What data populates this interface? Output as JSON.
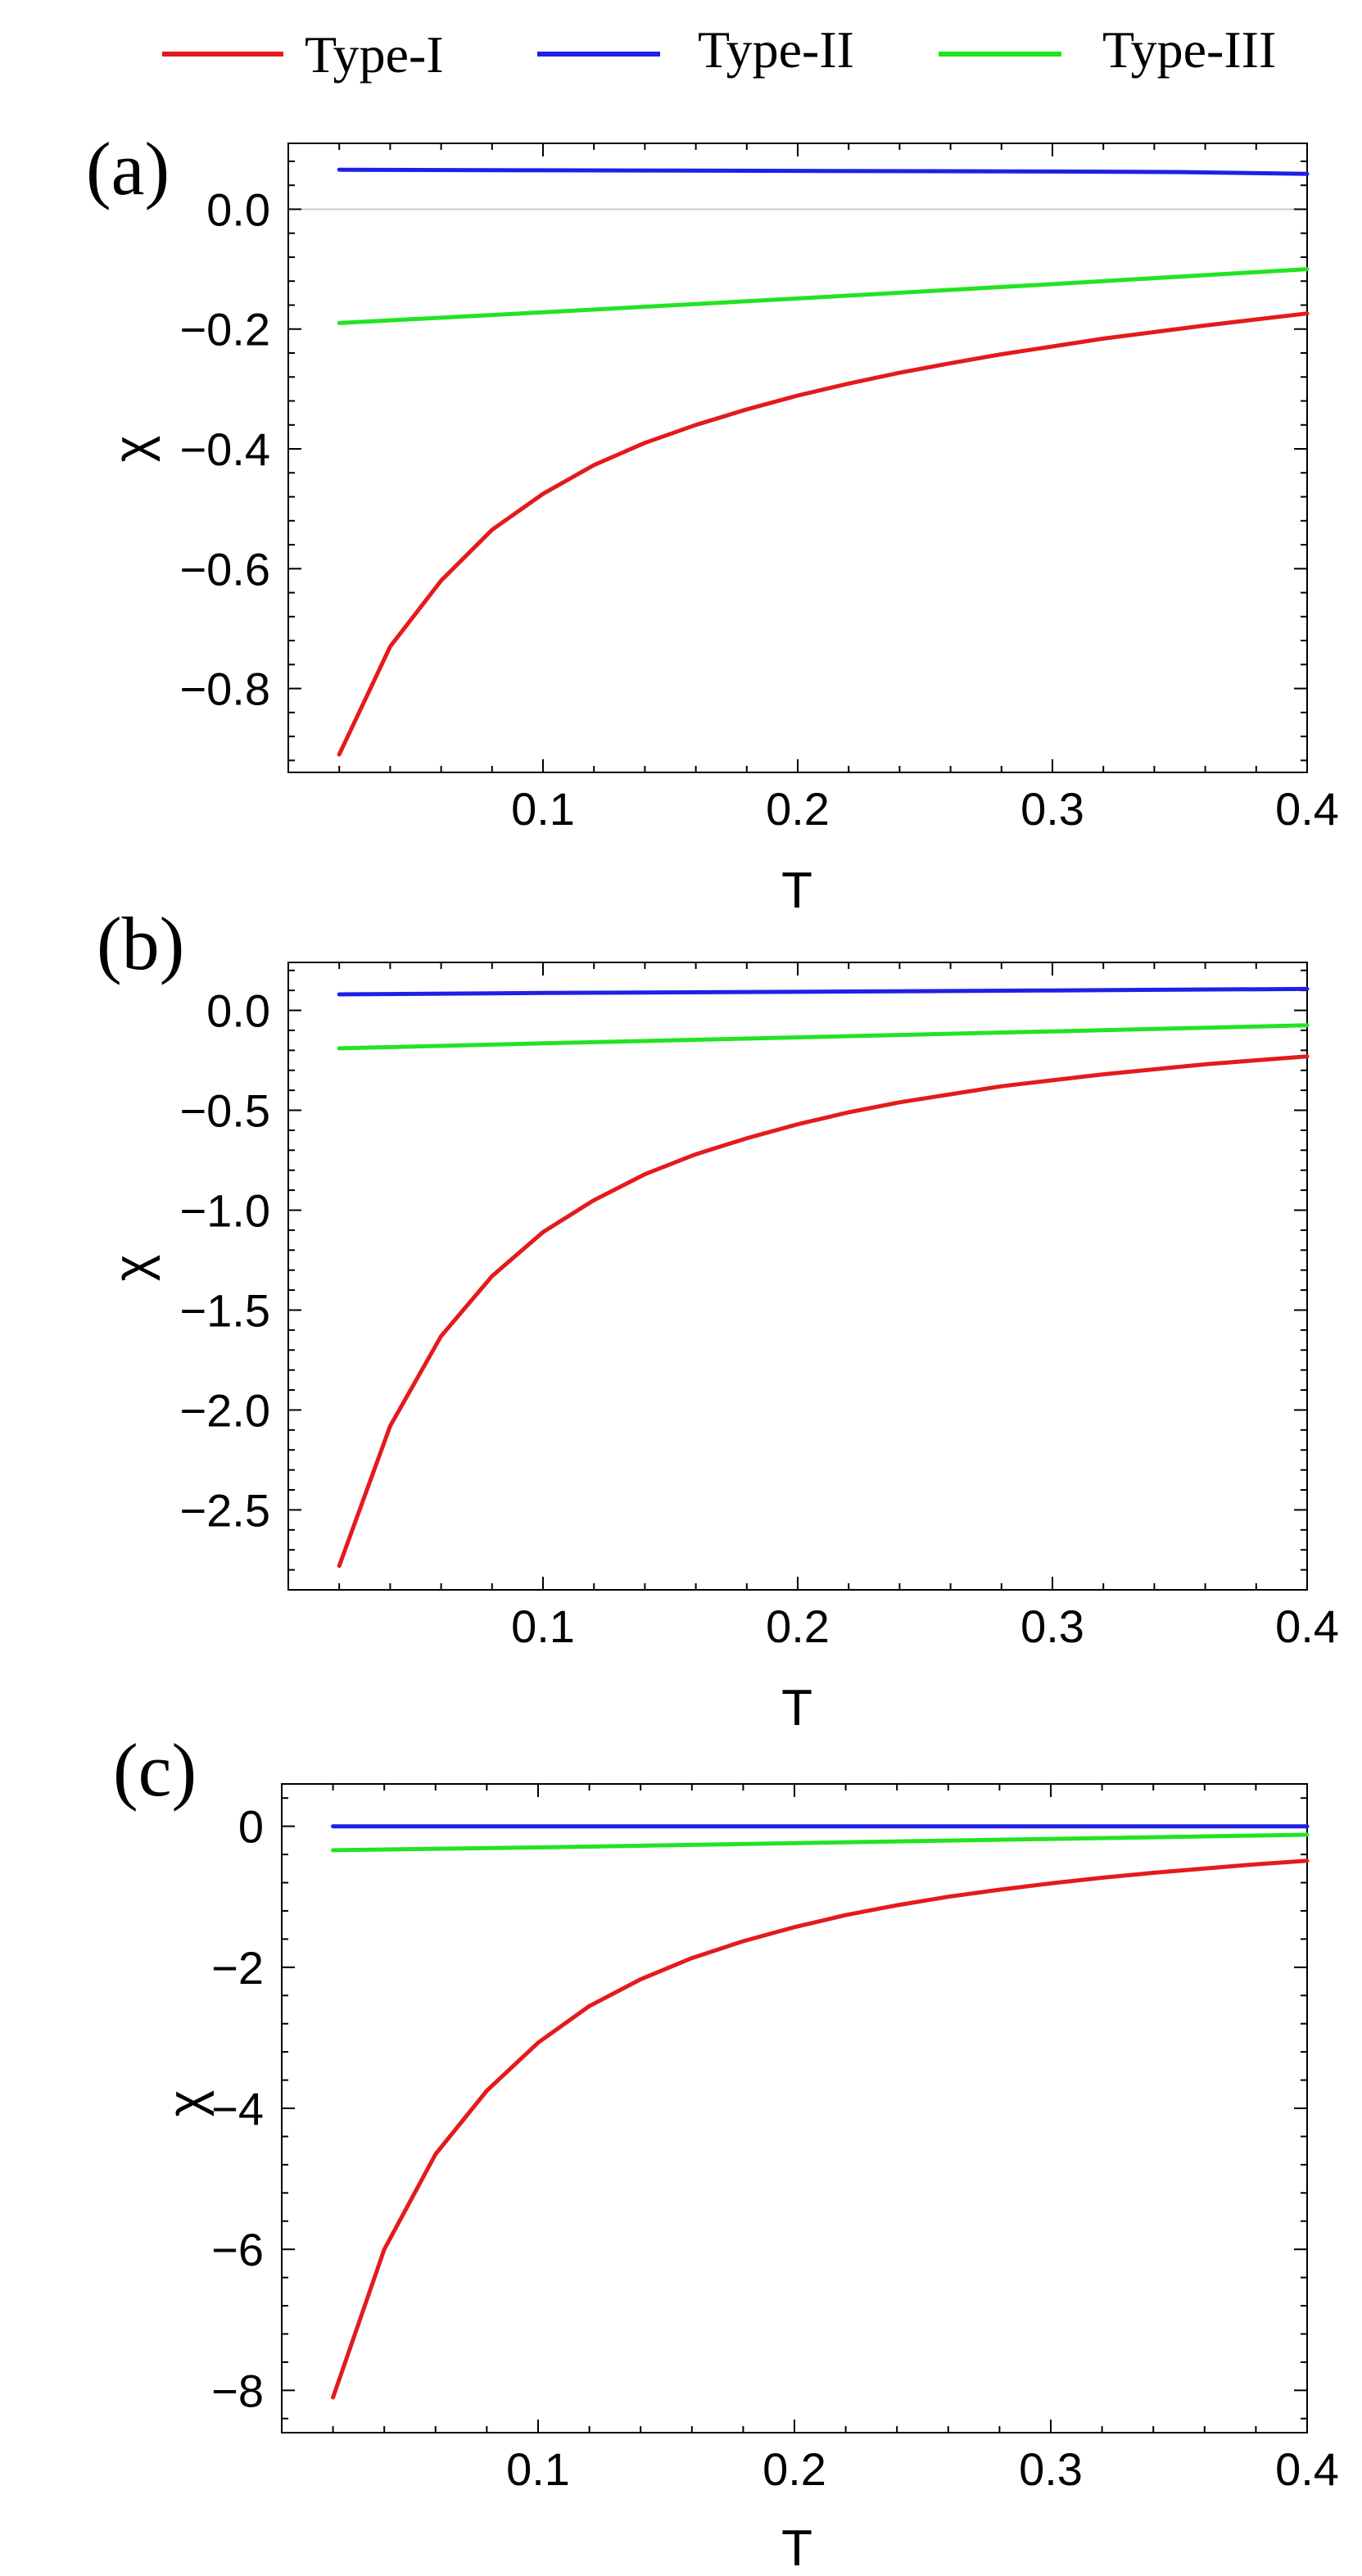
{
  "legend": [
    {
      "name": "Type-I",
      "color": "#e41a1c"
    },
    {
      "name": "Type-II",
      "color": "#1f1fe6"
    },
    {
      "name": "Type-III",
      "color": "#22e422"
    }
  ],
  "chart_data": [
    {
      "type": "line",
      "panel_label": "(a)",
      "xlabel": "T",
      "ylabel": "χ",
      "xlim": [
        0.0,
        0.4
      ],
      "ylim": [
        -0.94,
        0.11
      ],
      "xticks": [
        0.1,
        0.2,
        0.3,
        0.4
      ],
      "xtick_labels": [
        "0.1",
        "0.2",
        "0.3",
        "0.4"
      ],
      "yticks": [
        0.0,
        -0.2,
        -0.4,
        -0.6,
        -0.8
      ],
      "ytick_labels": [
        "0.0",
        "−0.2",
        "−0.4",
        "−0.6",
        "−0.8"
      ],
      "zero_line": true,
      "series": [
        {
          "name": "Type-I",
          "color": "#e41a1c",
          "x": [
            0.02,
            0.04,
            0.06,
            0.08,
            0.1,
            0.12,
            0.14,
            0.16,
            0.18,
            0.2,
            0.22,
            0.24,
            0.26,
            0.28,
            0.3,
            0.32,
            0.34,
            0.36,
            0.38,
            0.4
          ],
          "y": [
            -0.91,
            -0.73,
            -0.62,
            -0.535,
            -0.475,
            -0.427,
            -0.39,
            -0.36,
            -0.334,
            -0.311,
            -0.291,
            -0.273,
            -0.257,
            -0.242,
            -0.229,
            -0.216,
            -0.205,
            -0.194,
            -0.184,
            -0.174
          ]
        },
        {
          "name": "Type-II",
          "color": "#1f1fe6",
          "x": [
            0.02,
            0.1,
            0.2,
            0.3,
            0.35,
            0.4
          ],
          "y": [
            0.066,
            0.065,
            0.064,
            0.063,
            0.062,
            0.059
          ]
        },
        {
          "name": "Type-III",
          "color": "#22e422",
          "x": [
            0.02,
            0.1,
            0.2,
            0.3,
            0.4
          ],
          "y": [
            -0.19,
            -0.172,
            -0.149,
            -0.125,
            -0.1
          ]
        }
      ]
    },
    {
      "type": "line",
      "panel_label": "(b)",
      "xlabel": "T",
      "ylabel": "χ",
      "xlim": [
        0.0,
        0.4
      ],
      "ylim": [
        -2.9,
        0.24
      ],
      "xticks": [
        0.1,
        0.2,
        0.3,
        0.4
      ],
      "xtick_labels": [
        "0.1",
        "0.2",
        "0.3",
        "0.4"
      ],
      "yticks": [
        0.0,
        -0.5,
        -1.0,
        -1.5,
        -2.0,
        -2.5
      ],
      "ytick_labels": [
        "0.0",
        "−0.5",
        "−1.0",
        "−1.5",
        "−2.0",
        "−2.5"
      ],
      "zero_line": false,
      "series": [
        {
          "name": "Type-I",
          "color": "#e41a1c",
          "x": [
            0.02,
            0.04,
            0.06,
            0.08,
            0.1,
            0.12,
            0.14,
            0.16,
            0.18,
            0.2,
            0.22,
            0.24,
            0.26,
            0.28,
            0.3,
            0.32,
            0.34,
            0.36,
            0.38,
            0.4
          ],
          "y": [
            -2.78,
            -2.08,
            -1.63,
            -1.33,
            -1.11,
            -0.95,
            -0.82,
            -0.72,
            -0.64,
            -0.57,
            -0.51,
            -0.46,
            -0.42,
            -0.38,
            -0.35,
            -0.32,
            -0.295,
            -0.27,
            -0.25,
            -0.23
          ]
        },
        {
          "name": "Type-II",
          "color": "#1f1fe6",
          "x": [
            0.02,
            0.1,
            0.2,
            0.3,
            0.4
          ],
          "y": [
            0.08,
            0.087,
            0.093,
            0.1,
            0.107
          ]
        },
        {
          "name": "Type-III",
          "color": "#22e422",
          "x": [
            0.02,
            0.1,
            0.2,
            0.3,
            0.4
          ],
          "y": [
            -0.19,
            -0.165,
            -0.135,
            -0.105,
            -0.075
          ]
        }
      ]
    },
    {
      "type": "line",
      "panel_label": "(c)",
      "xlabel": "T",
      "ylabel": "χ",
      "xlim": [
        0.0,
        0.4
      ],
      "ylim": [
        -8.6,
        0.6
      ],
      "xticks": [
        0.1,
        0.2,
        0.3,
        0.4
      ],
      "xtick_labels": [
        "0.1",
        "0.2",
        "0.3",
        "0.4"
      ],
      "yticks": [
        0,
        -2,
        -4,
        -6,
        -8
      ],
      "ytick_labels": [
        "0",
        "−2",
        "−4",
        "−6",
        "−8"
      ],
      "zero_line": false,
      "series": [
        {
          "name": "Type-I",
          "color": "#e41a1c",
          "x": [
            0.02,
            0.04,
            0.06,
            0.08,
            0.1,
            0.12,
            0.14,
            0.16,
            0.18,
            0.2,
            0.22,
            0.24,
            0.26,
            0.28,
            0.3,
            0.32,
            0.34,
            0.36,
            0.38,
            0.4
          ],
          "y": [
            -8.1,
            -6.0,
            -4.65,
            -3.75,
            -3.07,
            -2.55,
            -2.17,
            -1.87,
            -1.63,
            -1.43,
            -1.26,
            -1.12,
            -1.0,
            -0.9,
            -0.81,
            -0.73,
            -0.66,
            -0.6,
            -0.54,
            -0.49
          ]
        },
        {
          "name": "Type-II",
          "color": "#1f1fe6",
          "x": [
            0.02,
            0.1,
            0.2,
            0.3,
            0.4
          ],
          "y": [
            0.0,
            0.0,
            0.0,
            0.0,
            0.0
          ]
        },
        {
          "name": "Type-III",
          "color": "#22e422",
          "x": [
            0.02,
            0.1,
            0.2,
            0.3,
            0.4
          ],
          "y": [
            -0.34,
            -0.3,
            -0.24,
            -0.18,
            -0.12
          ]
        }
      ]
    }
  ]
}
